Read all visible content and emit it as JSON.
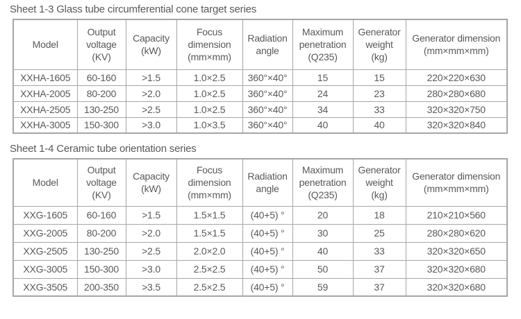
{
  "colors": {
    "text": "#595959",
    "border": "#a6a6a6",
    "background": "#ffffff"
  },
  "tables": [
    {
      "title": "Sheet 1-3 Glass tube circumferential cone target series",
      "columns": [
        [
          "Model"
        ],
        [
          "Output",
          "voltage",
          "(KV)"
        ],
        [
          "Capacity",
          "(kW)"
        ],
        [
          "Focus",
          "dimension",
          "(mm×mm)"
        ],
        [
          "Radiation",
          "angle"
        ],
        [
          "Maximum",
          "penetration",
          "(Q235)"
        ],
        [
          "Generator",
          "weight",
          "(kg)"
        ],
        [
          "Generator dimension",
          "(mm×mm×mm)"
        ]
      ],
      "rows": [
        [
          "XXHA-1605",
          "60-160",
          ">1.5",
          "1.0×2.5",
          "360°×40°",
          "15",
          "15",
          "220×220×630"
        ],
        [
          "XXHA-2005",
          "80-200",
          ">2.0",
          "1.0×2.5",
          "360°×40°",
          "24",
          "23",
          "280×280×680"
        ],
        [
          "XXHA-2505",
          "130-250",
          ">2.5",
          "1.0×2.5",
          "360°×40°",
          "34",
          "33",
          "320×320×750"
        ],
        [
          "XXHA-3005",
          "150-300",
          ">3.0",
          "1.0×3.5",
          "360°×40°",
          "40",
          "40",
          "320×320×840"
        ]
      ]
    },
    {
      "title": "Sheet 1-4 Ceramic tube orientation series",
      "columns": [
        [
          "Model"
        ],
        [
          "Output",
          "voltage",
          "(KV)"
        ],
        [
          "Capacity",
          "(kW)"
        ],
        [
          "Focus",
          "dimension",
          "(mm×mm)"
        ],
        [
          "Radiation",
          "angle"
        ],
        [
          "Maximum",
          "penetration",
          "(Q235)"
        ],
        [
          "Generator",
          "weight",
          "(kg)"
        ],
        [
          "Generator dimension",
          "(mm×mm×mm)"
        ]
      ],
      "rows": [
        [
          "XXG-1605",
          "60-160",
          ">1.5",
          "1.5×1.5",
          "(40+5) °",
          "20",
          "18",
          "210×210×560"
        ],
        [
          "XXG-2005",
          "80-200",
          ">2.0",
          "1.5×1.5",
          "(40+5) °",
          "30",
          "25",
          "280×280×620"
        ],
        [
          "XXG-2505",
          "130-250",
          ">2.5",
          "2.0×2.0",
          "(40+5) °",
          "40",
          "33",
          "320×320×650"
        ],
        [
          "XXG-3005",
          "150-300",
          ">3.0",
          "2.5×2.5",
          "(40+5) °",
          "50",
          "37",
          "320×320×680"
        ],
        [
          "XXG-3505",
          "200-350",
          ">3.5",
          "2.5×2.5",
          "(40+5) °",
          "59",
          "37",
          "320×320×680"
        ]
      ]
    }
  ]
}
